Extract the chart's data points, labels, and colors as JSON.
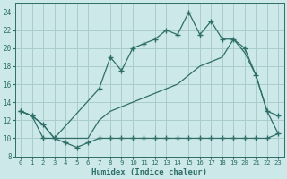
{
  "xlabel": "Humidex (Indice chaleur)",
  "bg_color": "#cce8e8",
  "grid_color": "#aacccc",
  "line_color": "#2e6e68",
  "xlim": [
    -0.5,
    23.5
  ],
  "ylim": [
    8,
    25
  ],
  "xticks": [
    0,
    1,
    2,
    3,
    4,
    5,
    6,
    7,
    8,
    9,
    10,
    11,
    12,
    13,
    14,
    15,
    16,
    17,
    18,
    19,
    20,
    21,
    22,
    23
  ],
  "yticks": [
    8,
    10,
    12,
    14,
    16,
    18,
    20,
    22,
    24
  ],
  "line_bottom_x": [
    0,
    1,
    2,
    3,
    4,
    5,
    6,
    7,
    8,
    9,
    10,
    11,
    12,
    13,
    14,
    15,
    16,
    17,
    18,
    19,
    20,
    21,
    22,
    23
  ],
  "line_bottom_y": [
    13,
    12.5,
    10,
    10,
    9.5,
    9,
    9.5,
    10,
    10,
    10,
    10,
    10,
    10,
    10,
    10,
    10,
    10,
    10,
    10,
    10,
    10,
    10,
    10,
    10.5
  ],
  "line_upper_x": [
    0,
    1,
    2,
    3,
    7,
    8,
    9,
    10,
    11,
    12,
    13,
    14,
    15,
    16,
    17,
    18,
    19,
    20,
    21,
    22,
    23
  ],
  "line_upper_y": [
    13,
    12.5,
    11.5,
    10,
    15.5,
    19,
    17.5,
    20,
    20.5,
    21,
    22,
    21.5,
    24,
    21.5,
    23,
    21,
    21,
    20,
    17,
    13,
    12.5
  ],
  "line_diag_x": [
    0,
    1,
    2,
    3,
    4,
    5,
    6,
    7,
    8,
    9,
    10,
    11,
    12,
    13,
    14,
    15,
    16,
    17,
    18,
    19,
    20,
    21,
    22,
    23
  ],
  "line_diag_y": [
    13,
    12.5,
    11.5,
    10,
    10,
    10,
    10,
    12,
    13,
    13.5,
    14,
    14.5,
    15,
    15.5,
    16,
    17,
    18,
    18.5,
    19,
    21,
    19.5,
    17,
    13,
    10.5
  ]
}
